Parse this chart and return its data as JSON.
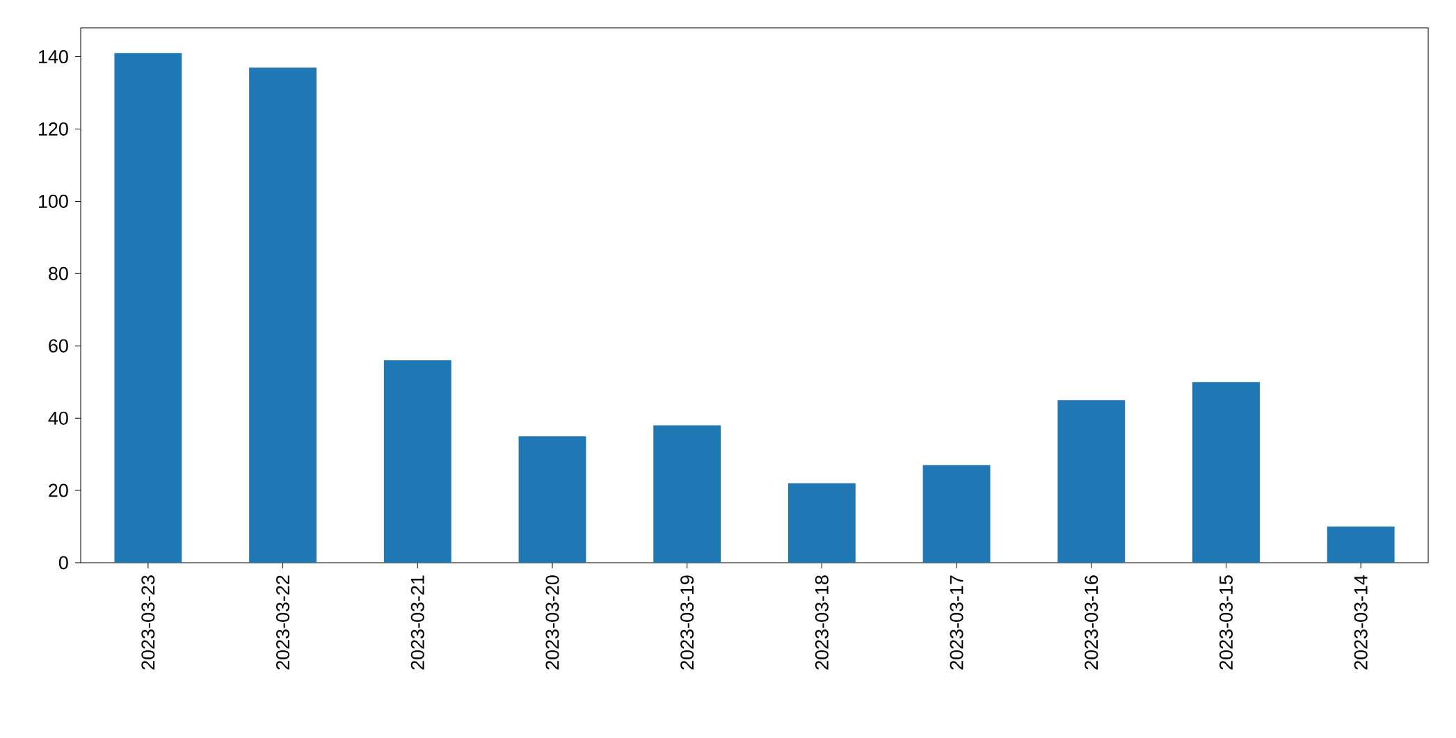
{
  "chart_data": {
    "type": "bar",
    "categories": [
      "2023-03-23",
      "2023-03-22",
      "2023-03-21",
      "2023-03-20",
      "2023-03-19",
      "2023-03-18",
      "2023-03-17",
      "2023-03-16",
      "2023-03-15",
      "2023-03-14"
    ],
    "values": [
      141,
      137,
      56,
      35,
      38,
      22,
      27,
      45,
      50,
      10
    ],
    "color": "#1f77b4",
    "ylim": [
      0,
      148
    ],
    "yticks": [
      0,
      20,
      40,
      60,
      80,
      100,
      120,
      140
    ]
  }
}
